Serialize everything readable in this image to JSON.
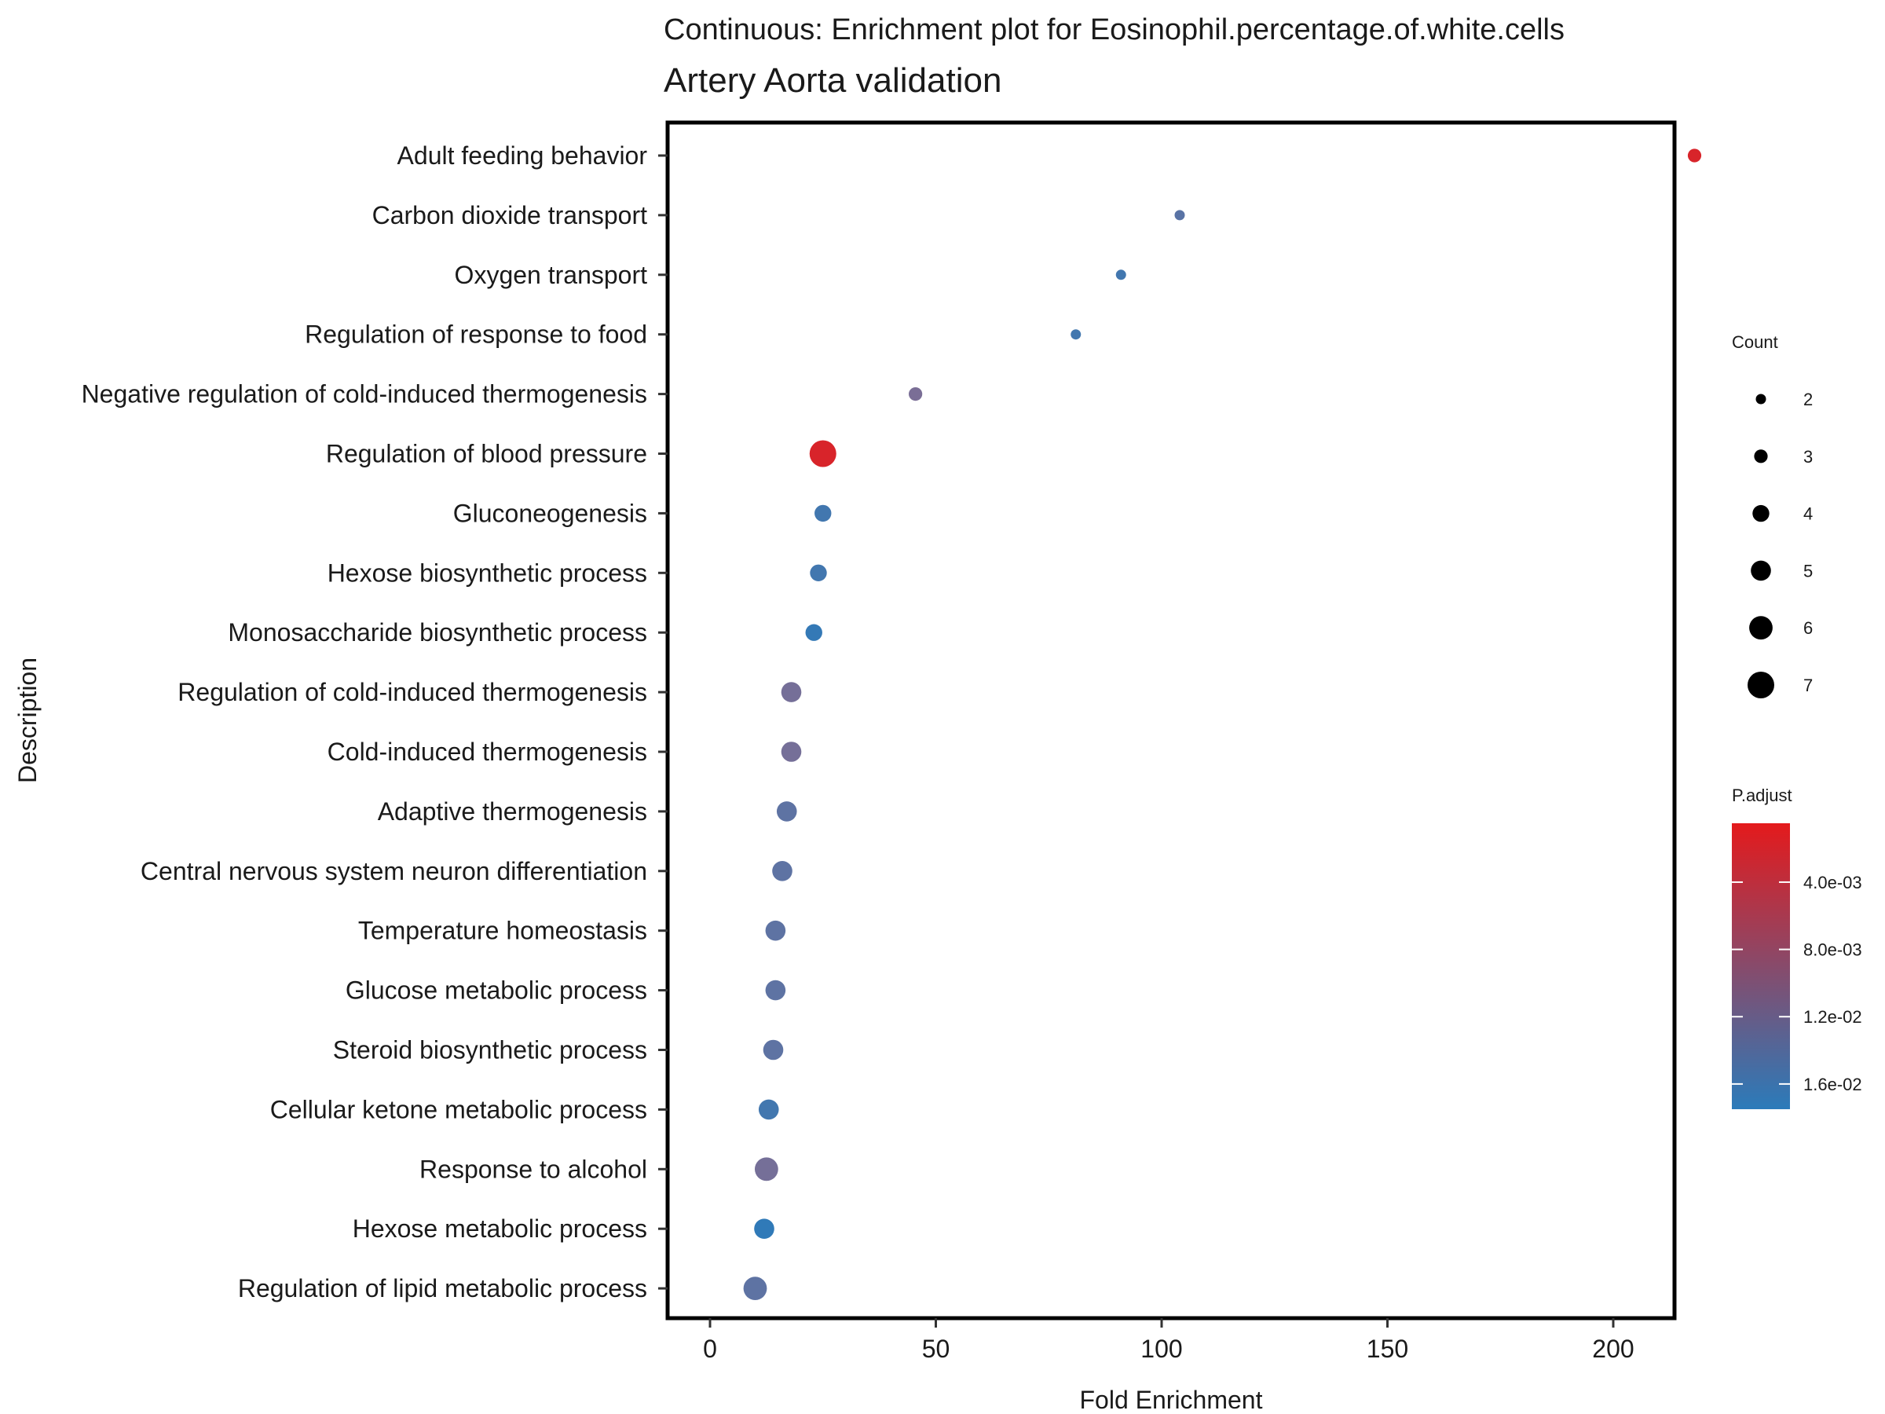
{
  "chart_data": {
    "type": "scatter",
    "title": "Continuous: Enrichment plot for Eosinophil.percentage.of.white.cells",
    "subtitle": "Artery Aorta validation",
    "xlabel": "Fold Enrichment",
    "ylabel": "Description",
    "xlim": [
      -10,
      230
    ],
    "xticks": [
      0,
      50,
      100,
      150,
      200
    ],
    "grid": false,
    "legend_position": "right",
    "points": [
      {
        "label": "Adult feeding behavior",
        "x": 218,
        "count": 3,
        "p_adjust": 0.0015
      },
      {
        "label": "Carbon dioxide transport",
        "x": 104,
        "count": 2,
        "p_adjust": 0.0125
      },
      {
        "label": "Oxygen transport",
        "x": 91,
        "count": 2,
        "p_adjust": 0.015
      },
      {
        "label": "Regulation of response to food",
        "x": 81,
        "count": 2,
        "p_adjust": 0.015
      },
      {
        "label": "Negative regulation of cold-induced thermogenesis",
        "x": 45.5,
        "count": 3,
        "p_adjust": 0.009
      },
      {
        "label": "Regulation of blood pressure",
        "x": 25,
        "count": 7,
        "p_adjust": 0.0015
      },
      {
        "label": "Gluconeogenesis",
        "x": 25,
        "count": 4,
        "p_adjust": 0.015
      },
      {
        "label": "Hexose biosynthetic process",
        "x": 24,
        "count": 4,
        "p_adjust": 0.015
      },
      {
        "label": "Monosaccharide biosynthetic process",
        "x": 23,
        "count": 4,
        "p_adjust": 0.0165
      },
      {
        "label": "Regulation of cold-induced thermogenesis",
        "x": 18,
        "count": 5,
        "p_adjust": 0.0095
      },
      {
        "label": "Cold-induced thermogenesis",
        "x": 18,
        "count": 5,
        "p_adjust": 0.0095
      },
      {
        "label": "Adaptive thermogenesis",
        "x": 17,
        "count": 5,
        "p_adjust": 0.012
      },
      {
        "label": "Central nervous system neuron differentiation",
        "x": 16,
        "count": 5,
        "p_adjust": 0.012
      },
      {
        "label": "Temperature homeostasis",
        "x": 14.5,
        "count": 5,
        "p_adjust": 0.012
      },
      {
        "label": "Glucose metabolic process",
        "x": 14.5,
        "count": 5,
        "p_adjust": 0.012
      },
      {
        "label": "Steroid biosynthetic process",
        "x": 14,
        "count": 5,
        "p_adjust": 0.012
      },
      {
        "label": "Cellular ketone metabolic process",
        "x": 13,
        "count": 5,
        "p_adjust": 0.015
      },
      {
        "label": "Response to alcohol",
        "x": 12.5,
        "count": 6,
        "p_adjust": 0.0095
      },
      {
        "label": "Hexose metabolic process",
        "x": 12,
        "count": 5,
        "p_adjust": 0.017
      },
      {
        "label": "Regulation of lipid metabolic process",
        "x": 10,
        "count": 6,
        "p_adjust": 0.012
      }
    ],
    "size_legend": {
      "title": "Count",
      "values": [
        2,
        3,
        4,
        5,
        6,
        7
      ]
    },
    "color_legend": {
      "title": "P.adjust",
      "low_color": "#2b7bba",
      "high_color": "#e41a1c",
      "tick_values": [
        0.004,
        0.008,
        0.012,
        0.016
      ],
      "tick_labels": [
        "4.0e-03",
        "8.0e-03",
        "1.2e-02",
        "1.6e-02"
      ],
      "range": [
        0.0005,
        0.0175
      ]
    }
  }
}
